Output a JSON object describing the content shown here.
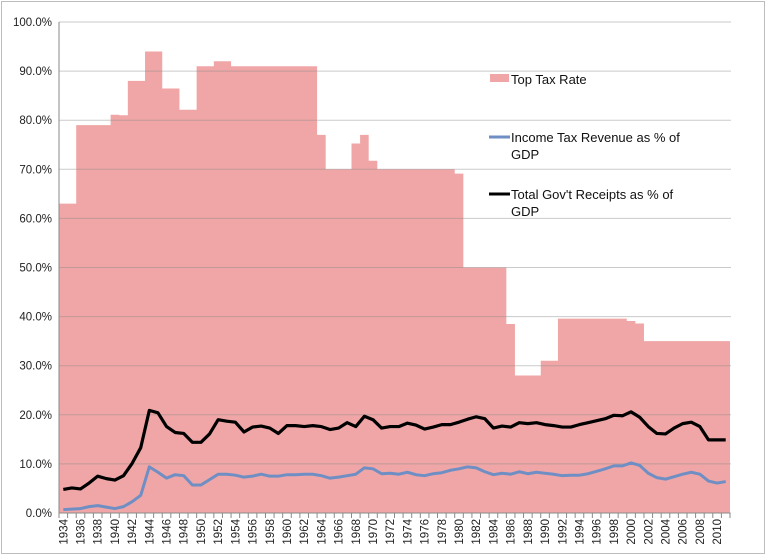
{
  "chart_data": {
    "type": "area+line",
    "title": "",
    "xlabel": "",
    "ylabel": "",
    "ylim": [
      0,
      100
    ],
    "y_ticks": [
      "0.0%",
      "10.0%",
      "20.0%",
      "30.0%",
      "40.0%",
      "50.0%",
      "60.0%",
      "70.0%",
      "80.0%",
      "90.0%",
      "100.0%"
    ],
    "x_start": 1934,
    "x_end": 2011,
    "x_tick_step": 2,
    "grid": true,
    "legend_placement": "top-right",
    "series": [
      {
        "name": "Top Tax Rate",
        "kind": "area",
        "color": "#f0a6a6",
        "values": [
          63,
          63,
          79,
          79,
          79,
          79,
          81.1,
          81,
          88,
          88,
          94,
          94,
          86.45,
          86.45,
          82.13,
          82.13,
          91,
          91,
          92,
          92,
          91,
          91,
          91,
          91,
          91,
          91,
          91,
          91,
          91,
          91,
          77,
          70,
          70,
          70,
          75.25,
          77,
          71.75,
          70,
          70,
          70,
          70,
          70,
          70,
          70,
          70,
          70,
          69.13,
          50,
          50,
          50,
          50,
          50,
          38.5,
          28,
          28,
          28,
          31,
          31,
          39.6,
          39.6,
          39.6,
          39.6,
          39.6,
          39.6,
          39.6,
          39.6,
          39.1,
          38.6,
          35,
          35,
          35,
          35,
          35,
          35,
          35,
          35,
          35,
          35
        ]
      },
      {
        "name": "Income Tax Revenue as % of GDP",
        "kind": "line",
        "color": "#6f8fc4",
        "values": [
          0.7,
          0.8,
          0.9,
          1.3,
          1.5,
          1.2,
          0.9,
          1.3,
          2.3,
          3.6,
          9.4,
          8.3,
          7.1,
          7.8,
          7.6,
          5.7,
          5.7,
          6.8,
          7.9,
          7.9,
          7.7,
          7.3,
          7.5,
          7.9,
          7.5,
          7.5,
          7.8,
          7.8,
          7.9,
          7.9,
          7.6,
          7.1,
          7.3,
          7.6,
          7.9,
          9.2,
          9.0,
          8.0,
          8.1,
          7.9,
          8.3,
          7.8,
          7.6,
          8.0,
          8.2,
          8.7,
          9.0,
          9.4,
          9.2,
          8.4,
          7.8,
          8.1,
          7.9,
          8.4,
          8.0,
          8.3,
          8.1,
          7.9,
          7.6,
          7.7,
          7.7,
          8.0,
          8.5,
          9.0,
          9.6,
          9.6,
          10.2,
          9.7,
          8.1,
          7.2,
          6.9,
          7.4,
          7.9,
          8.3,
          7.9,
          6.5,
          6.1,
          6.4
        ]
      },
      {
        "name": "Total Gov't Receipts as % of GDP",
        "kind": "line",
        "color": "#000000",
        "values": [
          4.8,
          5.1,
          4.9,
          6.1,
          7.5,
          7.0,
          6.7,
          7.6,
          10.1,
          13.3,
          20.9,
          20.4,
          17.6,
          16.4,
          16.2,
          14.4,
          14.4,
          16.1,
          19.0,
          18.7,
          18.5,
          16.5,
          17.5,
          17.7,
          17.3,
          16.2,
          17.8,
          17.8,
          17.6,
          17.8,
          17.6,
          17.0,
          17.3,
          18.4,
          17.6,
          19.7,
          19.0,
          17.3,
          17.6,
          17.6,
          18.3,
          17.9,
          17.1,
          17.5,
          18.0,
          18.0,
          18.5,
          19.1,
          19.6,
          19.2,
          17.3,
          17.7,
          17.5,
          18.4,
          18.2,
          18.4,
          18.0,
          17.8,
          17.5,
          17.5,
          18.0,
          18.4,
          18.8,
          19.2,
          19.9,
          19.8,
          20.6,
          19.5,
          17.6,
          16.2,
          16.1,
          17.3,
          18.2,
          18.5,
          17.6,
          14.9,
          14.9,
          14.9
        ]
      }
    ]
  }
}
